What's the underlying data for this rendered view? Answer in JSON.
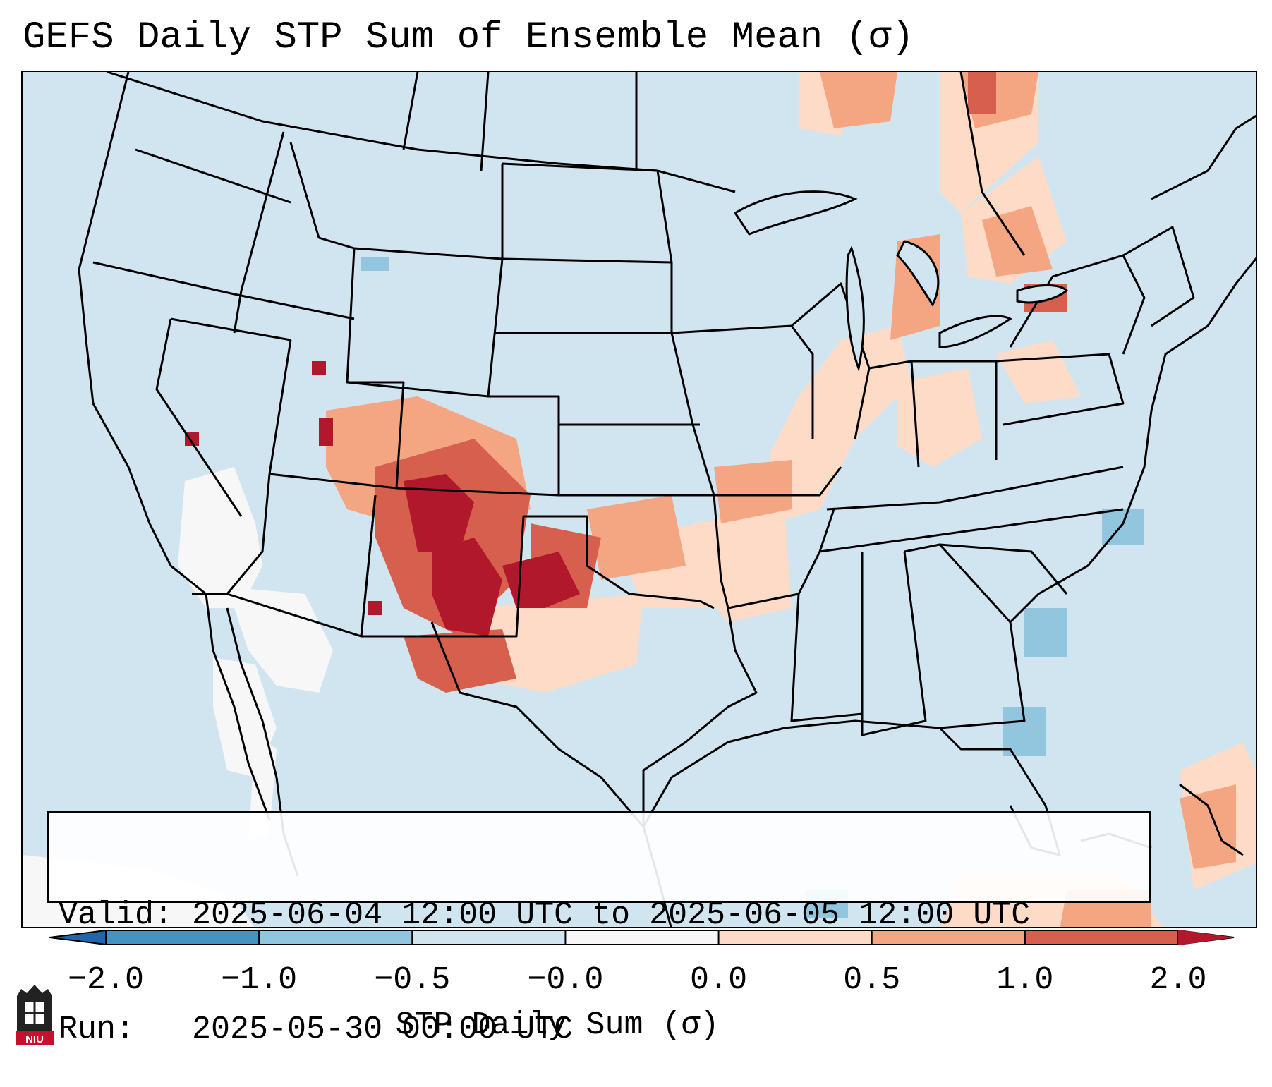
{
  "title": "GEFS Daily STP Sum of Ensemble Mean (σ)",
  "info": {
    "valid_line": "Valid: 2025-06-04 12:00 UTC to 2025-06-05 12:00 UTC",
    "run_line": "Run:   2025-05-30 00:00 UTC"
  },
  "colorbar": {
    "label": "STP Daily Sum (σ)",
    "ticks": [
      "−2.0",
      "−1.0",
      "−0.5",
      "−0.0",
      "0.0",
      "0.5",
      "1.0",
      "2.0"
    ],
    "colors": [
      "#2166ac",
      "#4393c3",
      "#92c5de",
      "#d1e5f0",
      "#f7f7f7",
      "#fddbc7",
      "#f4a582",
      "#d6604d",
      "#b2182b"
    ]
  },
  "map_data": {
    "region": "Contiguous United States",
    "features": [
      "state boundaries",
      "coastlines",
      "Great Lakes"
    ],
    "anomaly_areas": [
      {
        "area": "Southern High Plains / Texas Panhandle / eastern New Mexico",
        "category": "> 1.0"
      },
      {
        "area": "Colorado / Kansas / Oklahoma",
        "category": "0.5 to 1.0"
      },
      {
        "area": "Ozarks / Ohio Valley / Great Lakes / Northeast",
        "category": "0.0 to 0.5"
      },
      {
        "area": "Desert Southwest / Baja",
        "category": "-0.0"
      },
      {
        "area": "Southeast coast / Gulf Stream",
        "category": "-0.5 to -1.0"
      }
    ]
  },
  "logo_text": "NIU"
}
